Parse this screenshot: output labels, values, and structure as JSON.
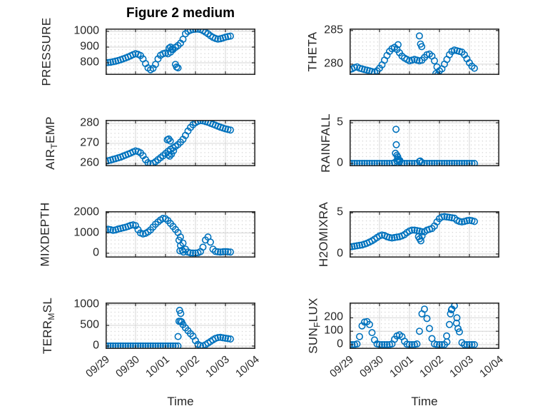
{
  "figure": {
    "title": "Figure 2 medium",
    "xlabel": "Time",
    "x_tick_labels": [
      "09/29",
      "09/30",
      "10/01",
      "10/02",
      "10/03",
      "10/04"
    ],
    "marker_color": "#0072BD",
    "axis_color": "#2b2b2b",
    "tick_color": "#262626",
    "major_grid_color": "#d6d6d6",
    "minor_grid_color": "#c3c3c3"
  },
  "chart_data": {
    "type": "scatter",
    "marker": "open-circle",
    "grid": "major solid + minor dotted",
    "x_axis": {
      "label": "Time",
      "start_date": "09/29",
      "end_date": "10/04",
      "range_days": [
        0,
        5
      ],
      "tick_labels": [
        "09/29",
        "09/30",
        "10/01",
        "10/02",
        "10/03",
        "10/04"
      ]
    },
    "subplots": [
      {
        "id": "pressure",
        "variable": "PRESSURE",
        "row": 0,
        "col": 0,
        "label": {
          "pre": "PRESSURE",
          "sub": "",
          "post": ""
        },
        "ylim": [
          723,
          1018
        ],
        "yticks": [
          800,
          900,
          1000
        ],
        "ytick_labels": [
          "800",
          "900",
          "1000"
        ],
        "t0": 0,
        "dt": 0.0833333,
        "values": [
          800,
          802,
          804,
          807,
          810,
          814,
          819,
          825,
          831,
          837,
          844,
          852,
          858,
          854,
          846,
          825,
          795,
          768,
          756,
          765,
          790,
          825,
          848,
          858,
          862,
          858,
          868,
          884,
          898,
          910,
          925,
          950,
          985,
          1000,
          1008,
          1012,
          1014,
          1015,
          1012,
          1005,
          995,
          985,
          972,
          962,
          955,
          951,
          953,
          958,
          963,
          967,
          970
        ],
        "outliers": [
          [
            2.12,
            893
          ],
          [
            2.17,
            900
          ],
          [
            2.22,
            888
          ],
          [
            2.33,
            790
          ],
          [
            2.37,
            773
          ],
          [
            2.42,
            768
          ]
        ]
      },
      {
        "id": "theta",
        "variable": "THETA",
        "row": 0,
        "col": 1,
        "label": {
          "pre": "THETA",
          "sub": "",
          "post": ""
        },
        "ylim": [
          278.4,
          285.3
        ],
        "yticks": [
          280,
          285
        ],
        "ytick_labels": [
          "280",
          "285"
        ],
        "t0": 0,
        "dt": 0.0833333,
        "values": [
          279.2,
          279.3,
          279.5,
          279.6,
          279.4,
          279.3,
          279.2,
          279.1,
          279.0,
          278.9,
          278.8,
          279.0,
          279.4,
          279.9,
          280.6,
          281.3,
          281.9,
          282.3,
          282.5,
          282.2,
          281.7,
          281.2,
          280.9,
          280.7,
          280.5,
          280.6,
          280.7,
          280.6,
          280.5,
          280.6,
          281.0,
          281.4,
          281.5,
          281.2,
          280.5,
          279.6,
          279.0,
          279.3,
          280.0,
          280.7,
          281.4,
          281.9,
          282.1,
          282.0,
          281.9,
          281.8,
          281.4,
          280.8,
          280.2,
          279.7,
          279.4
        ],
        "outliers": [
          [
            1.62,
            282.9
          ],
          [
            2.33,
            284.2
          ],
          [
            2.37,
            283.0
          ],
          [
            2.41,
            282.6
          ],
          [
            2.88,
            278.6
          ],
          [
            2.94,
            278.4
          ]
        ]
      },
      {
        "id": "airtemp",
        "variable": "AIR_TEMP",
        "row": 1,
        "col": 0,
        "label": {
          "pre": "AIR",
          "sub": "T",
          "post": "EMP"
        },
        "ylim": [
          258.5,
          281.8
        ],
        "yticks": [
          260,
          270,
          280
        ],
        "ytick_labels": [
          "260",
          "270",
          "280"
        ],
        "t0": 0,
        "dt": 0.0833333,
        "values": [
          261.0,
          261.3,
          261.6,
          262.0,
          262.3,
          262.7,
          263.1,
          263.6,
          264.1,
          264.6,
          265.1,
          265.7,
          266.2,
          265.9,
          265.2,
          263.8,
          261.8,
          260.3,
          259.7,
          260.0,
          260.8,
          261.8,
          262.8,
          263.8,
          264.9,
          266.0,
          267.0,
          267.8,
          268.5,
          269.4,
          270.6,
          272.0,
          274.0,
          276.2,
          278.0,
          279.4,
          280.4,
          281.1,
          281.4,
          281.3,
          281.0,
          280.6,
          280.1,
          279.6,
          279.1,
          278.6,
          278.1,
          277.7,
          277.3,
          277.0,
          276.7
        ],
        "outliers": [
          [
            2.06,
            271.8
          ],
          [
            2.11,
            272.2
          ],
          [
            2.16,
            271.2
          ],
          [
            2.09,
            264.2
          ],
          [
            2.14,
            263.6
          ],
          [
            2.2,
            264.6
          ],
          [
            2.27,
            266.3
          ]
        ]
      },
      {
        "id": "rainfall",
        "variable": "RAINFALL",
        "row": 1,
        "col": 1,
        "label": {
          "pre": "RAINFALL",
          "sub": "",
          "post": ""
        },
        "ylim": [
          -0.35,
          5.36
        ],
        "yticks": [
          0,
          5
        ],
        "ytick_labels": [
          "0",
          "5"
        ],
        "t0": 0,
        "dt": 0.0833333,
        "values": [
          0,
          0,
          0,
          0,
          0,
          0,
          0,
          0,
          0,
          0,
          0,
          0,
          0,
          0,
          0,
          0,
          0,
          0,
          0.1,
          0.3,
          0.2,
          0,
          0,
          0,
          0,
          0,
          0,
          0,
          0.25,
          0.1,
          0,
          0,
          0,
          0,
          0,
          0,
          0,
          0,
          0,
          0,
          0,
          0,
          0,
          0,
          0,
          0,
          0,
          0,
          0,
          0,
          0
        ],
        "outliers": [
          [
            1.55,
            4.2
          ],
          [
            1.56,
            2.3
          ],
          [
            1.53,
            1.25
          ],
          [
            1.58,
            1.0
          ],
          [
            1.61,
            0.8
          ],
          [
            1.6,
            0.55
          ],
          [
            1.64,
            0.45
          ],
          [
            1.68,
            0.35
          ],
          [
            2.36,
            0.3
          ]
        ]
      },
      {
        "id": "mixdepth",
        "variable": "MIXDEPTH",
        "row": 2,
        "col": 0,
        "label": {
          "pre": "MIXDEPTH",
          "sub": "",
          "post": ""
        },
        "ylim": [
          -214,
          2070
        ],
        "yticks": [
          0,
          1000,
          2000
        ],
        "ytick_labels": [
          "0",
          "1000",
          "2000"
        ],
        "t0": 0,
        "dt": 0.0833333,
        "values": [
          1150,
          1180,
          1160,
          1130,
          1150,
          1190,
          1220,
          1250,
          1280,
          1320,
          1370,
          1400,
          1360,
          1160,
          1000,
          950,
          980,
          1050,
          1150,
          1290,
          1430,
          1540,
          1640,
          1720,
          1700,
          1610,
          1470,
          1320,
          1170,
          1020,
          800,
          500,
          200,
          60,
          15,
          10,
          10,
          20,
          80,
          300,
          650,
          800,
          550,
          200,
          90,
          70,
          60,
          70,
          80,
          70,
          60
        ],
        "outliers": [
          [
            2.45,
            640
          ],
          [
            2.5,
            380
          ],
          [
            2.48,
            120
          ],
          [
            2.56,
            150
          ],
          [
            2.6,
            60
          ]
        ]
      },
      {
        "id": "h2omixra",
        "variable": "H2OMIXRA",
        "row": 2,
        "col": 1,
        "label": {
          "pre": "H2OMIXRA",
          "sub": "",
          "post": ""
        },
        "ylim": [
          -0.44,
          5.2
        ],
        "yticks": [
          0,
          5
        ],
        "ytick_labels": [
          "0",
          "5"
        ],
        "t0": 0,
        "dt": 0.0833333,
        "values": [
          0.85,
          0.9,
          0.95,
          1.0,
          1.05,
          1.1,
          1.2,
          1.3,
          1.45,
          1.6,
          1.8,
          2.0,
          2.2,
          2.3,
          2.25,
          2.1,
          2.0,
          1.95,
          2.0,
          2.05,
          2.1,
          2.2,
          2.35,
          2.6,
          2.8,
          2.9,
          2.9,
          2.85,
          2.8,
          2.7,
          2.7,
          2.9,
          3.0,
          3.1,
          3.4,
          3.9,
          4.3,
          4.5,
          4.55,
          4.5,
          4.45,
          4.4,
          4.35,
          4.1,
          3.95,
          3.9,
          3.95,
          4.05,
          4.1,
          4.05,
          3.95
        ],
        "outliers": [
          [
            2.3,
            2.1
          ],
          [
            2.34,
            1.85
          ],
          [
            2.38,
            1.6
          ],
          [
            2.42,
            2.2
          ]
        ]
      },
      {
        "id": "terr",
        "variable": "TERR_MSL",
        "row": 3,
        "col": 0,
        "label": {
          "pre": "TERR",
          "sub": "M",
          "post": "SL"
        },
        "ylim": [
          -70,
          1053
        ],
        "yticks": [
          0,
          500,
          1000
        ],
        "ytick_labels": [
          "0",
          "500",
          "1000"
        ],
        "t0": 0,
        "dt": 0.0833333,
        "values": [
          0,
          0,
          0,
          0,
          0,
          0,
          0,
          0,
          0,
          0,
          0,
          0,
          0,
          0,
          0,
          0,
          0,
          0,
          0,
          0,
          0,
          0,
          0,
          0,
          0,
          0,
          0,
          0,
          0,
          0,
          600,
          520,
          440,
          370,
          300,
          240,
          130,
          40,
          10,
          5,
          30,
          70,
          110,
          150,
          185,
          205,
          210,
          200,
          190,
          180,
          170
        ],
        "outliers": [
          [
            2.47,
            865
          ],
          [
            2.51,
            790
          ],
          [
            2.45,
            600
          ],
          [
            2.42,
            230
          ],
          [
            2.54,
            585
          ]
        ]
      },
      {
        "id": "sunflux",
        "variable": "SUN_FLUX",
        "row": 3,
        "col": 1,
        "label": {
          "pre": "SUN",
          "sub": "F",
          "post": "LUX"
        },
        "ylim": [
          -32,
          314
        ],
        "yticks": [
          0,
          100,
          200
        ],
        "ytick_labels": [
          "0",
          "100",
          "200"
        ],
        "t0": 0,
        "dt": 0.0833333,
        "values": [
          0,
          0,
          0,
          5,
          60,
          140,
          168,
          172,
          150,
          90,
          35,
          5,
          0,
          0,
          0,
          0,
          0,
          5,
          40,
          65,
          73,
          60,
          25,
          3,
          0,
          0,
          0,
          5,
          100,
          230,
          265,
          195,
          120,
          45,
          5,
          0,
          0,
          0,
          0,
          20,
          150,
          265,
          290,
          200,
          95,
          15,
          0,
          0,
          0,
          0,
          0
        ],
        "outliers": [
          [
            3.37,
            230
          ],
          [
            3.4,
            260
          ],
          [
            3.57,
            160
          ],
          [
            3.62,
            120
          ],
          [
            3.24,
            65
          ]
        ]
      }
    ]
  }
}
